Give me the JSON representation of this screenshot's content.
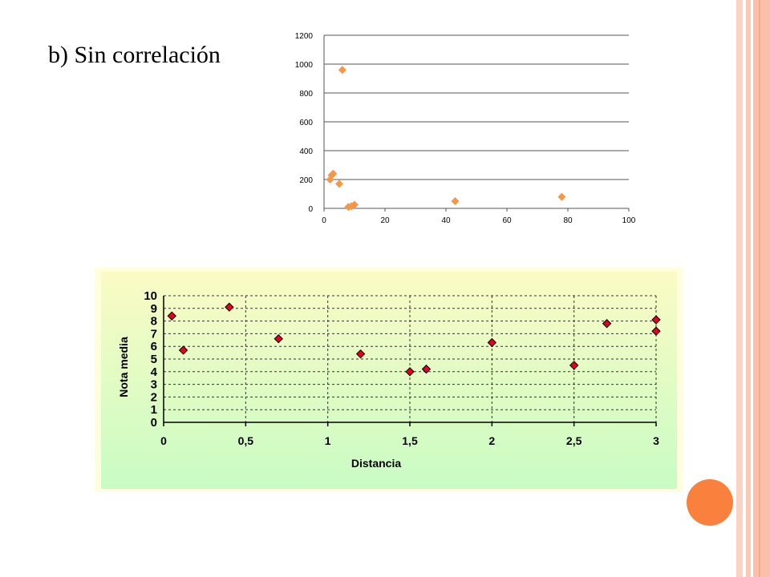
{
  "slide": {
    "heading": "b) Sin correlación",
    "accent_colors": {
      "stripe": "#fac0aa",
      "circle": "#f9803d"
    }
  },
  "chart_data": [
    {
      "type": "scatter",
      "title": "",
      "xlabel": "",
      "ylabel": "",
      "xlim": [
        0,
        100
      ],
      "ylim": [
        0,
        1200
      ],
      "xticks": [
        "0",
        "20",
        "40",
        "60",
        "80",
        "100"
      ],
      "yticks": [
        "0",
        "200",
        "400",
        "600",
        "800",
        "1000",
        "1200"
      ],
      "grid": "horizontal",
      "legend": "none",
      "marker": "diamond",
      "marker_color": "#f79646",
      "series": [
        {
          "points": [
            {
              "x": 2,
              "y": 200
            },
            {
              "x": 2.5,
              "y": 230
            },
            {
              "x": 3,
              "y": 240
            },
            {
              "x": 5,
              "y": 170
            },
            {
              "x": 6,
              "y": 960
            },
            {
              "x": 8,
              "y": 10
            },
            {
              "x": 9,
              "y": 15
            },
            {
              "x": 10,
              "y": 25
            },
            {
              "x": 43,
              "y": 50
            },
            {
              "x": 78,
              "y": 80
            }
          ]
        }
      ]
    },
    {
      "type": "scatter",
      "title": "",
      "xlabel": "Distancia",
      "ylabel": "Nota media",
      "xlim": [
        0,
        3
      ],
      "ylim": [
        0,
        10
      ],
      "xticks": [
        "0",
        "0,5",
        "1",
        "1,5",
        "2",
        "2,5",
        "3"
      ],
      "yticks": [
        "0",
        "1",
        "2",
        "3",
        "4",
        "5",
        "6",
        "7",
        "8",
        "9",
        "10"
      ],
      "grid": "dotted",
      "legend": "none",
      "marker": "diamond",
      "marker_color": "#e3001b",
      "background": "yellow-to-green gradient",
      "series": [
        {
          "points": [
            {
              "x": 0.05,
              "y": 8.4
            },
            {
              "x": 0.12,
              "y": 5.7
            },
            {
              "x": 0.4,
              "y": 9.1
            },
            {
              "x": 0.7,
              "y": 6.6
            },
            {
              "x": 1.2,
              "y": 5.4
            },
            {
              "x": 1.5,
              "y": 4.0
            },
            {
              "x": 1.6,
              "y": 4.2
            },
            {
              "x": 2.0,
              "y": 6.3
            },
            {
              "x": 2.5,
              "y": 4.5
            },
            {
              "x": 2.7,
              "y": 7.8
            },
            {
              "x": 3.0,
              "y": 8.1
            },
            {
              "x": 3.0,
              "y": 7.2
            }
          ]
        }
      ]
    }
  ]
}
